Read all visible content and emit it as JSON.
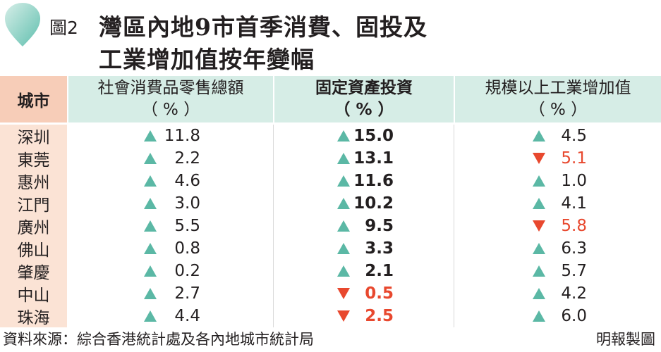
{
  "figure_label": "圖2",
  "title_line1": "灣區內地9市首季消費、固投及",
  "title_line2": "工業增加值按年變幅",
  "headers": {
    "city": "城市",
    "col1": "社會消費品零售總額",
    "col2": "固定資產投資",
    "col3": "規模以上工業增加值",
    "unit": "（ % ）"
  },
  "colors": {
    "up": "#5bb8a5",
    "down": "#e8482e",
    "header_bg": "#d6ede6",
    "city_bg": "#fbe3d5",
    "city_header_bg": "#f7cdb8"
  },
  "rows": [
    {
      "city": "深圳",
      "retail": "11.8",
      "retail_dir": "up",
      "fixed": "15.0",
      "fixed_dir": "up",
      "industry": "4.5",
      "industry_dir": "up"
    },
    {
      "city": "東莞",
      "retail": "2.2",
      "retail_dir": "up",
      "fixed": "13.1",
      "fixed_dir": "up",
      "industry": "5.1",
      "industry_dir": "down"
    },
    {
      "city": "惠州",
      "retail": "4.6",
      "retail_dir": "up",
      "fixed": "11.6",
      "fixed_dir": "up",
      "industry": "1.0",
      "industry_dir": "up"
    },
    {
      "city": "江門",
      "retail": "3.0",
      "retail_dir": "up",
      "fixed": "10.2",
      "fixed_dir": "up",
      "industry": "4.1",
      "industry_dir": "up"
    },
    {
      "city": "廣州",
      "retail": "5.5",
      "retail_dir": "up",
      "fixed": "9.5",
      "fixed_dir": "up",
      "industry": "5.8",
      "industry_dir": "down"
    },
    {
      "city": "佛山",
      "retail": "0.8",
      "retail_dir": "up",
      "fixed": "3.3",
      "fixed_dir": "up",
      "industry": "6.3",
      "industry_dir": "up"
    },
    {
      "city": "肇慶",
      "retail": "0.2",
      "retail_dir": "up",
      "fixed": "2.1",
      "fixed_dir": "up",
      "industry": "5.7",
      "industry_dir": "up"
    },
    {
      "city": "中山",
      "retail": "2.7",
      "retail_dir": "up",
      "fixed": "0.5",
      "fixed_dir": "down",
      "industry": "4.2",
      "industry_dir": "up"
    },
    {
      "city": "珠海",
      "retail": "4.4",
      "retail_dir": "up",
      "fixed": "2.5",
      "fixed_dir": "down",
      "industry": "6.0",
      "industry_dir": "up"
    }
  ],
  "source": "資料來源：綜合香港統計處及各內地城市統計局",
  "credit": "明報製圖"
}
